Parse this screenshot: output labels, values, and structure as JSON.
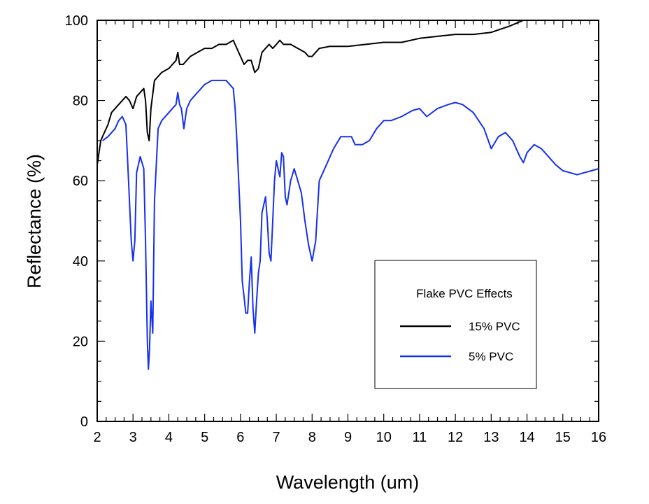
{
  "chart_data": {
    "type": "line",
    "xlabel": "Wavelength (um)",
    "ylabel": "Reflectance (%)",
    "xlim": [
      2,
      16
    ],
    "ylim": [
      0,
      100
    ],
    "x_ticks": [
      "2",
      "3",
      "4",
      "5",
      "6",
      "7",
      "8",
      "9",
      "10",
      "11",
      "12",
      "13",
      "14",
      "15",
      "16"
    ],
    "y_ticks": [
      "0",
      "20",
      "40",
      "60",
      "80",
      "100"
    ],
    "grid": false,
    "legend": {
      "title": "Flake PVC Effects",
      "placement": "bottom-right"
    },
    "series": [
      {
        "name": "15% PVC",
        "color": "#000000",
        "points": [
          [
            2.0,
            64
          ],
          [
            2.1,
            70
          ],
          [
            2.2,
            72
          ],
          [
            2.3,
            74
          ],
          [
            2.4,
            77
          ],
          [
            2.5,
            78
          ],
          [
            2.6,
            79
          ],
          [
            2.7,
            80
          ],
          [
            2.8,
            81
          ],
          [
            2.9,
            80
          ],
          [
            3.0,
            78
          ],
          [
            3.1,
            81
          ],
          [
            3.2,
            82
          ],
          [
            3.3,
            83
          ],
          [
            3.35,
            80
          ],
          [
            3.4,
            72
          ],
          [
            3.45,
            70
          ],
          [
            3.5,
            78
          ],
          [
            3.6,
            85
          ],
          [
            3.8,
            87
          ],
          [
            4.0,
            88
          ],
          [
            4.2,
            90
          ],
          [
            4.25,
            92
          ],
          [
            4.3,
            89
          ],
          [
            4.4,
            89
          ],
          [
            4.6,
            91
          ],
          [
            4.8,
            92
          ],
          [
            5.0,
            93
          ],
          [
            5.2,
            93
          ],
          [
            5.4,
            94
          ],
          [
            5.6,
            94
          ],
          [
            5.8,
            95
          ],
          [
            5.9,
            93
          ],
          [
            6.0,
            91
          ],
          [
            6.1,
            89
          ],
          [
            6.2,
            90
          ],
          [
            6.3,
            90
          ],
          [
            6.4,
            87
          ],
          [
            6.5,
            88
          ],
          [
            6.6,
            92
          ],
          [
            6.7,
            93
          ],
          [
            6.8,
            94
          ],
          [
            6.9,
            93
          ],
          [
            7.0,
            94
          ],
          [
            7.1,
            95
          ],
          [
            7.2,
            94
          ],
          [
            7.4,
            94
          ],
          [
            7.6,
            93
          ],
          [
            7.8,
            92
          ],
          [
            7.9,
            91
          ],
          [
            8.0,
            91
          ],
          [
            8.2,
            93
          ],
          [
            8.5,
            93.5
          ],
          [
            9.0,
            93.5
          ],
          [
            9.5,
            94
          ],
          [
            10.0,
            94.5
          ],
          [
            10.5,
            94.5
          ],
          [
            11.0,
            95.5
          ],
          [
            11.5,
            96
          ],
          [
            12.0,
            96.5
          ],
          [
            12.5,
            96.5
          ],
          [
            13.0,
            97
          ],
          [
            13.5,
            98.5
          ],
          [
            13.9,
            100
          ]
        ]
      },
      {
        "name": "5% PVC",
        "color": "#1530ee",
        "points": [
          [
            2.15,
            70
          ],
          [
            2.3,
            71
          ],
          [
            2.5,
            73
          ],
          [
            2.6,
            75
          ],
          [
            2.7,
            76
          ],
          [
            2.8,
            74
          ],
          [
            2.85,
            65
          ],
          [
            2.9,
            55
          ],
          [
            2.95,
            45
          ],
          [
            3.0,
            40
          ],
          [
            3.05,
            45
          ],
          [
            3.1,
            62
          ],
          [
            3.2,
            66
          ],
          [
            3.3,
            63
          ],
          [
            3.35,
            45
          ],
          [
            3.4,
            20
          ],
          [
            3.43,
            13
          ],
          [
            3.46,
            18
          ],
          [
            3.5,
            30
          ],
          [
            3.55,
            22
          ],
          [
            3.6,
            55
          ],
          [
            3.7,
            73
          ],
          [
            3.8,
            75
          ],
          [
            4.0,
            77
          ],
          [
            4.1,
            78
          ],
          [
            4.2,
            79
          ],
          [
            4.25,
            82
          ],
          [
            4.3,
            79
          ],
          [
            4.35,
            78
          ],
          [
            4.42,
            73
          ],
          [
            4.5,
            78
          ],
          [
            4.6,
            80
          ],
          [
            4.8,
            82
          ],
          [
            5.0,
            84
          ],
          [
            5.2,
            85
          ],
          [
            5.4,
            85
          ],
          [
            5.6,
            85
          ],
          [
            5.8,
            83
          ],
          [
            5.85,
            78
          ],
          [
            5.9,
            70
          ],
          [
            6.0,
            50
          ],
          [
            6.05,
            35
          ],
          [
            6.1,
            31
          ],
          [
            6.15,
            27
          ],
          [
            6.2,
            27
          ],
          [
            6.25,
            35
          ],
          [
            6.3,
            41
          ],
          [
            6.35,
            28
          ],
          [
            6.4,
            22
          ],
          [
            6.45,
            30
          ],
          [
            6.5,
            37
          ],
          [
            6.55,
            40
          ],
          [
            6.6,
            52
          ],
          [
            6.7,
            56
          ],
          [
            6.75,
            50
          ],
          [
            6.8,
            42
          ],
          [
            6.85,
            40
          ],
          [
            6.9,
            50
          ],
          [
            6.95,
            60
          ],
          [
            7.0,
            65
          ],
          [
            7.05,
            63
          ],
          [
            7.1,
            61
          ],
          [
            7.15,
            67
          ],
          [
            7.2,
            66
          ],
          [
            7.25,
            56
          ],
          [
            7.3,
            54
          ],
          [
            7.4,
            60
          ],
          [
            7.5,
            63
          ],
          [
            7.6,
            60
          ],
          [
            7.7,
            57
          ],
          [
            7.8,
            50
          ],
          [
            7.9,
            44
          ],
          [
            8.0,
            40
          ],
          [
            8.1,
            45
          ],
          [
            8.2,
            60
          ],
          [
            8.4,
            64
          ],
          [
            8.6,
            68
          ],
          [
            8.8,
            71
          ],
          [
            9.0,
            71
          ],
          [
            9.1,
            71
          ],
          [
            9.2,
            69
          ],
          [
            9.4,
            69
          ],
          [
            9.6,
            70
          ],
          [
            9.8,
            73
          ],
          [
            10.0,
            75
          ],
          [
            10.2,
            75
          ],
          [
            10.5,
            76
          ],
          [
            10.8,
            77.5
          ],
          [
            11.0,
            78
          ],
          [
            11.2,
            76
          ],
          [
            11.5,
            78
          ],
          [
            11.8,
            79
          ],
          [
            12.0,
            79.5
          ],
          [
            12.2,
            79
          ],
          [
            12.5,
            77
          ],
          [
            12.8,
            73
          ],
          [
            13.0,
            68
          ],
          [
            13.2,
            71
          ],
          [
            13.4,
            72
          ],
          [
            13.6,
            70
          ],
          [
            13.8,
            66
          ],
          [
            13.9,
            64.5
          ],
          [
            14.0,
            67
          ],
          [
            14.2,
            69
          ],
          [
            14.4,
            68
          ],
          [
            14.6,
            66
          ],
          [
            14.8,
            64
          ],
          [
            15.0,
            62.5
          ],
          [
            15.2,
            62
          ],
          [
            15.4,
            61.5
          ],
          [
            15.6,
            62
          ],
          [
            15.8,
            62.5
          ],
          [
            16.0,
            63
          ]
        ]
      }
    ]
  }
}
